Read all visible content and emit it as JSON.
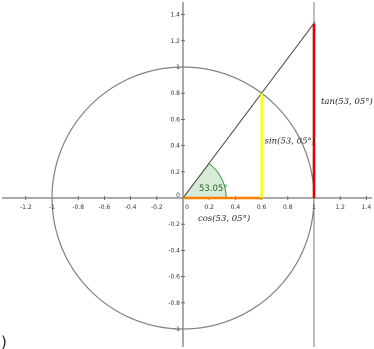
{
  "chart_data": {
    "type": "diagram",
    "angle_deg": 53.05,
    "point": {
      "x": 0.6,
      "y": 0.8
    },
    "tan_value": 1.33,
    "x_ticks": [
      "-1.2",
      "-1",
      "-0.8",
      "-0.6",
      "-0.4",
      "-0.2",
      "0",
      "0.2",
      "0.4",
      "0.6",
      "0.8",
      "1",
      "1.2",
      "1.4"
    ],
    "x_tick_values": [
      -1.2,
      -1,
      -0.8,
      -0.6,
      -0.4,
      -0.2,
      0,
      0.2,
      0.4,
      0.6,
      0.8,
      1,
      1.2,
      1.4
    ],
    "y_ticks": [
      "1.4",
      "1.2",
      "1",
      "0.8",
      "0.6",
      "0.4",
      "0.2",
      "0",
      "-0.2",
      "-0.4",
      "-0.6",
      "-0.8",
      "-1"
    ],
    "y_tick_values": [
      1.4,
      1.2,
      1,
      0.8,
      0.6,
      0.4,
      0.2,
      0,
      -0.2,
      -0.4,
      -0.6,
      -0.8,
      -1
    ],
    "xlim": [
      -1.38,
      1.46
    ],
    "ylim": [
      -1.05,
      1.5
    ]
  },
  "labels": {
    "angle": "53.05°",
    "sin": "sin(53, 05°)",
    "cos": "cos(53, 05°)",
    "tan": "tan(53, 05°)",
    "edge_paren": ")"
  },
  "colors": {
    "circle": "#808080",
    "axis": "#555555",
    "sin": "#ffff00",
    "cos": "#ff8000",
    "tan": "#e00000",
    "angle_fill": "#d8ead8",
    "angle_stroke": "#2e8b2e",
    "ray": "#444444",
    "tangent_line": "#7f7f7f"
  }
}
